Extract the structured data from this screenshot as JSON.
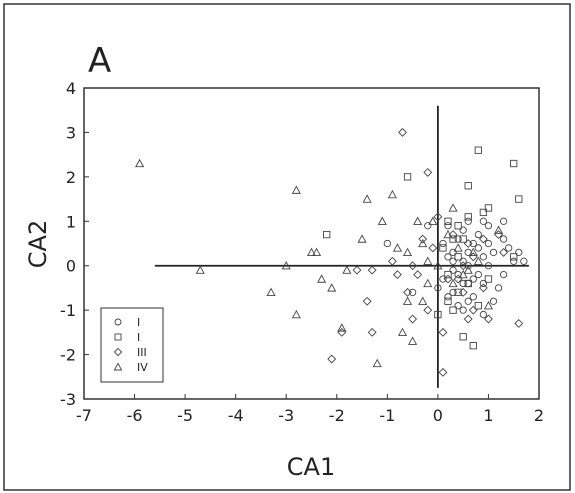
{
  "panel_label": "A",
  "chart_data": {
    "type": "scatter",
    "xlabel": "CA1",
    "ylabel": "CA2",
    "xlim": [
      -7,
      2
    ],
    "ylim": [
      -3,
      4
    ],
    "xticks": [
      "-7",
      "-6",
      "-5",
      "-4",
      "-3",
      "-2",
      "-1",
      "0",
      "1",
      "2"
    ],
    "yticks": [
      "-3",
      "-2",
      "-1",
      "0",
      "1",
      "2",
      "3",
      "4"
    ],
    "grid": false,
    "legend_position": "bottom-left",
    "reference_lines": {
      "horizontal": {
        "y": 0,
        "x_range": [
          -5.6,
          1.8
        ]
      },
      "vertical": {
        "x": 0,
        "y_range": [
          -2.75,
          3.6
        ]
      }
    },
    "series": [
      {
        "name": "I",
        "marker": "circle",
        "points": [
          [
            -1.0,
            0.5
          ],
          [
            0.2,
            0.9
          ],
          [
            0.4,
            0.6
          ],
          [
            0.6,
            1.0
          ],
          [
            0.9,
            0.2
          ],
          [
            1.1,
            0.3
          ],
          [
            0.8,
            -0.2
          ],
          [
            0.5,
            -0.4
          ],
          [
            0.3,
            -0.1
          ],
          [
            1.3,
            0.6
          ],
          [
            1.0,
            0.9
          ],
          [
            0.6,
            0.3
          ],
          [
            0.7,
            -0.7
          ],
          [
            1.2,
            -0.5
          ],
          [
            0.4,
            -0.9
          ],
          [
            0.9,
            -1.1
          ],
          [
            0.1,
            0.5
          ],
          [
            0.5,
            0.1
          ],
          [
            1.0,
            0.0
          ],
          [
            1.5,
            0.1
          ],
          [
            0.3,
            0.3
          ],
          [
            0.7,
            0.5
          ],
          [
            -0.2,
            0.9
          ],
          [
            1.3,
            1.0
          ],
          [
            0.6,
            -0.4
          ],
          [
            0.2,
            -0.7
          ],
          [
            0.8,
            0.7
          ],
          [
            0.4,
            -0.2
          ],
          [
            1.7,
            0.1
          ],
          [
            0.9,
            1.0
          ],
          [
            0.0,
            -0.5
          ],
          [
            0.3,
            0.1
          ],
          [
            1.1,
            -0.8
          ],
          [
            0.5,
            0.8
          ],
          [
            0.2,
            0.2
          ],
          [
            0.6,
            0.0
          ],
          [
            0.8,
            0.4
          ],
          [
            1.4,
            0.4
          ],
          [
            0.1,
            -0.3
          ],
          [
            0.7,
            -0.3
          ],
          [
            1.0,
            0.5
          ],
          [
            0.5,
            -1.0
          ],
          [
            1.3,
            -0.2
          ],
          [
            0.3,
            -0.6
          ],
          [
            -0.5,
            -0.6
          ],
          [
            0.9,
            -0.4
          ],
          [
            0.6,
            -0.8
          ],
          [
            1.6,
            0.3
          ]
        ]
      },
      {
        "name": "I",
        "marker": "square",
        "points": [
          [
            -2.2,
            0.7
          ],
          [
            -0.6,
            2.0
          ],
          [
            0.2,
            1.0
          ],
          [
            0.4,
            0.9
          ],
          [
            0.6,
            1.1
          ],
          [
            0.8,
            2.6
          ],
          [
            0.6,
            1.8
          ],
          [
            1.5,
            2.3
          ],
          [
            1.6,
            1.5
          ],
          [
            1.0,
            1.3
          ],
          [
            0.4,
            0.2
          ],
          [
            1.5,
            0.2
          ],
          [
            0.2,
            -0.8
          ],
          [
            0.3,
            -1.0
          ],
          [
            0.5,
            -1.6
          ],
          [
            0.6,
            -0.4
          ],
          [
            0.7,
            -1.8
          ],
          [
            0.8,
            -0.9
          ],
          [
            0.2,
            -0.2
          ],
          [
            0.1,
            0.4
          ],
          [
            0.9,
            1.2
          ],
          [
            0.5,
            0.6
          ],
          [
            0.0,
            -1.1
          ],
          [
            1.0,
            -0.3
          ],
          [
            0.3,
            0.6
          ],
          [
            0.4,
            -0.6
          ]
        ]
      },
      {
        "name": "III",
        "marker": "diamond",
        "points": [
          [
            -0.7,
            3.0
          ],
          [
            -0.2,
            2.1
          ],
          [
            0.0,
            1.1
          ],
          [
            -0.3,
            0.6
          ],
          [
            -0.9,
            0.1
          ],
          [
            -1.3,
            -0.1
          ],
          [
            -1.6,
            -0.1
          ],
          [
            -0.8,
            -0.2
          ],
          [
            -0.5,
            0.0
          ],
          [
            -0.1,
            0.4
          ],
          [
            -1.4,
            -0.8
          ],
          [
            -1.9,
            -1.5
          ],
          [
            -1.3,
            -1.5
          ],
          [
            -2.1,
            -2.1
          ],
          [
            -0.5,
            -1.2
          ],
          [
            -0.2,
            -1.0
          ],
          [
            -0.6,
            -0.6
          ],
          [
            -0.4,
            -0.2
          ],
          [
            0.5,
            -0.6
          ],
          [
            0.6,
            -1.2
          ],
          [
            0.1,
            -2.4
          ],
          [
            0.5,
            0.0
          ],
          [
            0.7,
            0.2
          ],
          [
            1.2,
            0.7
          ],
          [
            1.3,
            0.3
          ],
          [
            1.6,
            -1.3
          ],
          [
            1.0,
            -1.2
          ],
          [
            0.7,
            -1.0
          ],
          [
            0.4,
            -0.3
          ],
          [
            0.3,
            0.7
          ],
          [
            0.9,
            0.6
          ],
          [
            0.1,
            -1.5
          ],
          [
            0.9,
            -0.5
          ],
          [
            0.6,
            0.5
          ],
          [
            0.2,
            -0.3
          ]
        ]
      },
      {
        "name": "IV",
        "marker": "triangle",
        "points": [
          [
            -5.9,
            2.3
          ],
          [
            -4.7,
            -0.1
          ],
          [
            -3.3,
            -0.6
          ],
          [
            -3.0,
            0.0
          ],
          [
            -2.8,
            1.7
          ],
          [
            -2.5,
            0.3
          ],
          [
            -2.4,
            0.3
          ],
          [
            -2.3,
            -0.3
          ],
          [
            -2.1,
            -0.5
          ],
          [
            -1.8,
            -0.1
          ],
          [
            -1.4,
            1.5
          ],
          [
            -1.1,
            1.0
          ],
          [
            -0.9,
            1.6
          ],
          [
            -0.6,
            0.3
          ],
          [
            -0.4,
            1.0
          ],
          [
            -0.3,
            0.5
          ],
          [
            -0.2,
            0.1
          ],
          [
            -0.1,
            1.0
          ],
          [
            -0.7,
            -1.5
          ],
          [
            -0.5,
            -1.7
          ],
          [
            -2.8,
            -1.1
          ],
          [
            -1.9,
            -1.4
          ],
          [
            -1.2,
            -2.2
          ],
          [
            -1.5,
            0.6
          ],
          [
            -0.8,
            0.4
          ],
          [
            -0.3,
            -0.8
          ],
          [
            0.0,
            0.0
          ],
          [
            0.2,
            0.7
          ],
          [
            0.3,
            -0.4
          ],
          [
            0.5,
            -0.2
          ],
          [
            0.7,
            0.3
          ],
          [
            1.2,
            0.8
          ],
          [
            1.0,
            -0.9
          ],
          [
            0.4,
            0.4
          ],
          [
            0.8,
            0.1
          ],
          [
            0.3,
            1.3
          ],
          [
            -0.2,
            -0.4
          ],
          [
            0.6,
            -0.1
          ],
          [
            -0.6,
            -0.8
          ]
        ]
      }
    ],
    "legend": [
      {
        "marker": "circle",
        "label": "I"
      },
      {
        "marker": "square",
        "label": "I"
      },
      {
        "marker": "diamond",
        "label": "III"
      },
      {
        "marker": "triangle",
        "label": "IV"
      }
    ]
  }
}
